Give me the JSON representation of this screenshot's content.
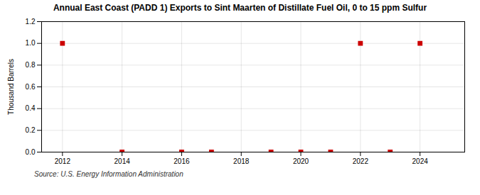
{
  "chart_data": {
    "type": "scatter",
    "title": "Annual East Coast (PADD 1) Exports to Sint Maarten of Distillate Fuel Oil, 0 to 15 ppm Sulfur",
    "ylabel": "Thousand Barrels",
    "caption": "Source: U.S. Energy Information Administration",
    "x": [
      2012,
      2014,
      2016,
      2017,
      2019,
      2020,
      2021,
      2022,
      2023,
      2024
    ],
    "values": [
      1.0,
      0.0,
      0.0,
      0.0,
      0.0,
      0.0,
      0.0,
      1.0,
      0.0,
      1.0
    ],
    "color": "#cc0000",
    "marker": "square",
    "xlim": [
      2011.3,
      2025.5
    ],
    "xticks": [
      2012,
      2014,
      2016,
      2018,
      2020,
      2022,
      2024
    ],
    "ylim": [
      0.0,
      1.2
    ],
    "yticks": [
      {
        "value": 0.0,
        "label": "0.0"
      },
      0.2,
      0.4,
      0.6,
      0.8,
      {
        "value": 1.0,
        "label": "1.0"
      },
      1.2
    ],
    "grid": true
  }
}
